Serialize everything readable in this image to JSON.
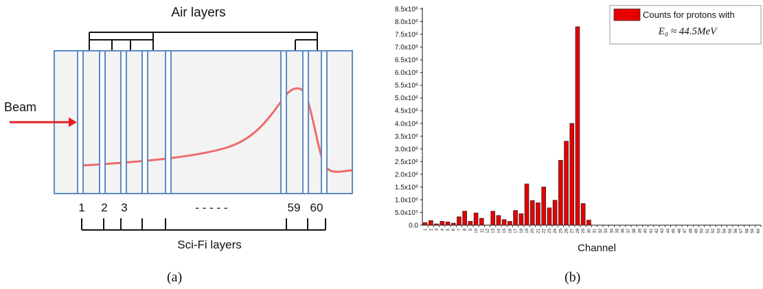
{
  "panel_a": {
    "caption": "(a)",
    "top_label": "Air layers",
    "bottom_label": "Sci-Fi layers",
    "beam_label": "Beam",
    "layer_numbers": [
      "1",
      "2",
      "3",
      "59",
      "60"
    ],
    "ellipsis": "- - - - -",
    "colors": {
      "detector_outline": "#5b8ac6",
      "beam_arrow": "#e41e1e",
      "curve": "#f06a6a",
      "background": "#f3f3f3"
    }
  },
  "panel_b": {
    "caption": "(b)",
    "chart_data": {
      "type": "bar",
      "xlabel": "Channel",
      "ylabel": "",
      "ylim": [
        0,
        8.5
      ],
      "y_scale_unit": "×10^6",
      "yticks": [
        "0.0",
        "5.0x10⁵",
        "1.0x10⁶",
        "1.5x10⁶",
        "2.0x10⁶",
        "2.5x10⁶",
        "3.0x10⁶",
        "3.5x10⁶",
        "4.0x10⁶",
        "4.5x10⁶",
        "5.0x10⁶",
        "5.5x10⁶",
        "6.0x10⁶",
        "6.5x10⁶",
        "7.0x10⁶",
        "7.5x10⁶",
        "8.0x10⁶",
        "8.5x10⁶"
      ],
      "categories": [
        "1",
        "2",
        "3",
        "4",
        "5",
        "6",
        "7",
        "8",
        "9",
        "10",
        "11",
        "12",
        "13",
        "14",
        "15",
        "16",
        "17",
        "18",
        "19",
        "20",
        "21",
        "22",
        "23",
        "24",
        "25",
        "26",
        "27",
        "28",
        "29",
        "30",
        "31",
        "32",
        "33",
        "34",
        "35",
        "36",
        "37",
        "38",
        "39",
        "40",
        "41",
        "42",
        "43",
        "44",
        "45",
        "46",
        "47",
        "48",
        "49",
        "50",
        "51",
        "52",
        "53",
        "54",
        "55",
        "56",
        "57",
        "58",
        "59",
        "60"
      ],
      "series": [
        {
          "name": "Counts for protons with",
          "values": [
            0.1,
            0.18,
            0.05,
            0.15,
            0.13,
            0.08,
            0.33,
            0.55,
            0.15,
            0.48,
            0.27,
            0,
            0.55,
            0.38,
            0.22,
            0.15,
            0.58,
            0.45,
            1.62,
            0.97,
            0.88,
            1.5,
            0.68,
            0.98,
            2.55,
            3.3,
            4.0,
            7.8,
            0.85,
            0.2,
            0,
            0,
            0,
            0,
            0,
            0,
            0,
            0,
            0,
            0,
            0,
            0,
            0,
            0,
            0,
            0,
            0,
            0,
            0,
            0,
            0,
            0,
            0,
            0,
            0,
            0,
            0,
            0,
            0,
            0
          ],
          "color": "#e60000"
        }
      ],
      "legend_formula": "E₀ ≈ 44.5MeV",
      "legend_position": "top-right",
      "grid": false
    }
  }
}
